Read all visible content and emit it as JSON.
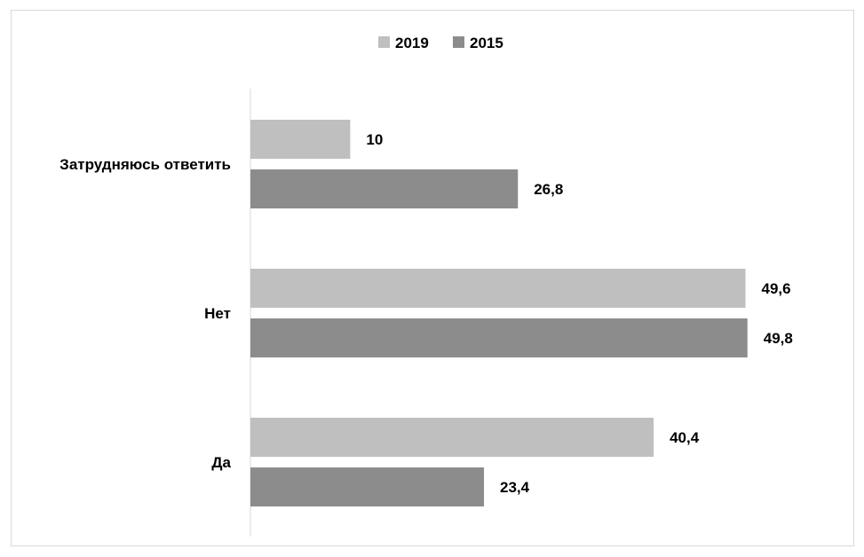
{
  "chart_data": {
    "type": "bar",
    "orientation": "horizontal",
    "categories": [
      "Затрудняюсь ответить",
      "Нет",
      "Да"
    ],
    "series": [
      {
        "name": "2019",
        "values": [
          10,
          49.6,
          40.4
        ],
        "labels": [
          "10",
          "49,6",
          "40,4"
        ],
        "color": "#bfbfbf"
      },
      {
        "name": "2015",
        "values": [
          26.8,
          49.8,
          23.4
        ],
        "labels": [
          "26,8",
          "49,8",
          "23,4"
        ],
        "color": "#8c8c8c"
      }
    ],
    "xlim": [
      0,
      50
    ],
    "grid": false,
    "legend_position": "top-center",
    "axis_line_color": "#d9d9d9"
  }
}
